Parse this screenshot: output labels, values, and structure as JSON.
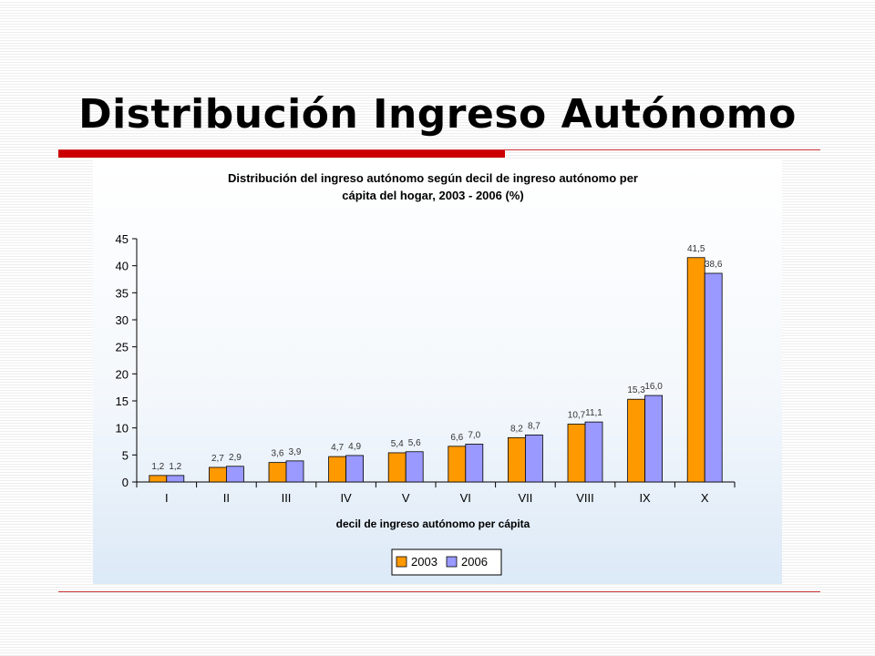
{
  "slide": {
    "title": "Distribución Ingreso Autónomo"
  },
  "colors": {
    "series_2003": "#ff9900",
    "series_2006": "#9999ff",
    "rule_red": "#cc0000"
  },
  "chart_data": {
    "type": "bar",
    "title": "Distribución del ingreso autónomo según decil de ingreso autónomo per cápita del hogar, 2003 - 2006 (%)",
    "title_lines": [
      "Distribución del ingreso autónomo según decil de ingreso autónomo per",
      "cápita del hogar, 2003 - 2006 (%)"
    ],
    "xlabel": "decil de ingreso autónomo per cápita",
    "ylabel": "",
    "ylim": [
      0,
      45
    ],
    "yticks": [
      "0",
      "5",
      "10",
      "15",
      "20",
      "25",
      "30",
      "35",
      "40",
      "45"
    ],
    "categories": [
      "I",
      "II",
      "III",
      "IV",
      "V",
      "VI",
      "VII",
      "VIII",
      "IX",
      "X"
    ],
    "series": [
      {
        "name": "2003",
        "values": [
          1.2,
          2.7,
          3.6,
          4.7,
          5.4,
          6.6,
          8.2,
          10.7,
          15.3,
          41.5
        ],
        "labels": [
          "1,2",
          "2,7",
          "3,6",
          "4,7",
          "5,4",
          "6,6",
          "8,2",
          "10,7",
          "15,3",
          "41,5"
        ]
      },
      {
        "name": "2006",
        "values": [
          1.2,
          2.9,
          3.9,
          4.9,
          5.6,
          7.0,
          8.7,
          11.1,
          16.0,
          38.6
        ],
        "labels": [
          "1,2",
          "2,9",
          "3,9",
          "4,9",
          "5,6",
          "7,0",
          "8,7",
          "11,1",
          "16,0",
          "38,6"
        ]
      }
    ],
    "grid": false,
    "legend": "bottom"
  }
}
